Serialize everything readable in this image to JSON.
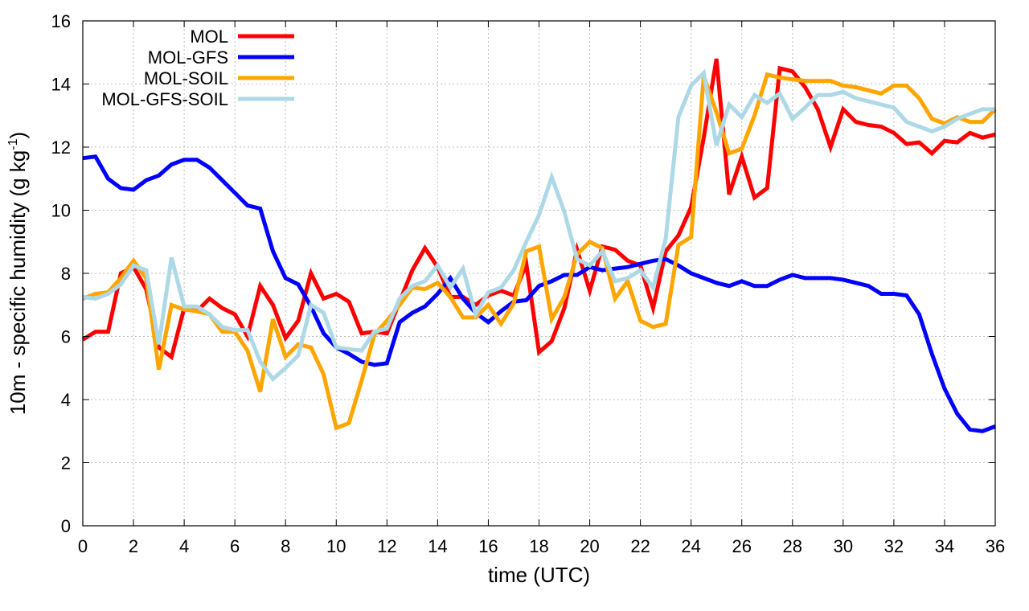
{
  "chart_data": {
    "type": "line",
    "title": "",
    "xlabel": "time (UTC)",
    "ylabel": {
      "main": "10m - specific humidity (g kg",
      "superscript": "-1",
      "suffix": ")"
    },
    "xlim": [
      0,
      36
    ],
    "ylim": [
      0,
      16
    ],
    "xticks": [
      0,
      2,
      4,
      6,
      8,
      10,
      12,
      14,
      16,
      18,
      20,
      22,
      24,
      26,
      28,
      30,
      32,
      34,
      36
    ],
    "yticks": [
      0,
      2,
      4,
      6,
      8,
      10,
      12,
      14,
      16
    ],
    "grid": true,
    "legend_position": "top-left",
    "series": [
      {
        "name": "MOL",
        "color": "#ff0000",
        "points": [
          [
            0,
            5.9
          ],
          [
            0.5,
            6.15
          ],
          [
            1,
            6.15
          ],
          [
            1.5,
            8.0
          ],
          [
            2,
            8.2
          ],
          [
            2.5,
            7.5
          ],
          [
            3,
            5.65
          ],
          [
            3.5,
            5.35
          ],
          [
            4,
            6.9
          ],
          [
            4.5,
            6.8
          ],
          [
            5,
            7.2
          ],
          [
            5.5,
            6.9
          ],
          [
            6,
            6.7
          ],
          [
            6.5,
            6.0
          ],
          [
            7,
            7.6
          ],
          [
            7.5,
            7.0
          ],
          [
            8,
            5.95
          ],
          [
            8.5,
            6.5
          ],
          [
            9,
            8.0
          ],
          [
            9.5,
            7.2
          ],
          [
            10,
            7.35
          ],
          [
            10.5,
            7.1
          ],
          [
            11,
            6.1
          ],
          [
            11.5,
            6.15
          ],
          [
            12,
            6.1
          ],
          [
            12.5,
            7.1
          ],
          [
            13,
            8.1
          ],
          [
            13.5,
            8.8
          ],
          [
            14,
            8.2
          ],
          [
            14.5,
            7.25
          ],
          [
            15,
            7.25
          ],
          [
            15.5,
            7.0
          ],
          [
            16,
            7.3
          ],
          [
            16.5,
            7.45
          ],
          [
            17,
            7.3
          ],
          [
            17.5,
            8.3
          ],
          [
            18,
            5.5
          ],
          [
            18.5,
            5.85
          ],
          [
            19,
            6.9
          ],
          [
            19.5,
            8.75
          ],
          [
            20,
            7.45
          ],
          [
            20.5,
            8.85
          ],
          [
            21,
            8.75
          ],
          [
            21.5,
            8.4
          ],
          [
            22,
            8.25
          ],
          [
            22.5,
            6.9
          ],
          [
            23,
            8.7
          ],
          [
            23.5,
            9.2
          ],
          [
            24,
            10.1
          ],
          [
            24.5,
            12.3
          ],
          [
            25,
            14.8
          ],
          [
            25.5,
            10.5
          ],
          [
            26,
            11.7
          ],
          [
            26.5,
            10.4
          ],
          [
            27,
            10.7
          ],
          [
            27.5,
            14.5
          ],
          [
            28,
            14.4
          ],
          [
            28.5,
            13.9
          ],
          [
            29,
            13.2
          ],
          [
            29.5,
            12.0
          ],
          [
            30,
            13.2
          ],
          [
            30.5,
            12.8
          ],
          [
            31,
            12.7
          ],
          [
            31.5,
            12.65
          ],
          [
            32,
            12.45
          ],
          [
            32.5,
            12.1
          ],
          [
            33,
            12.15
          ],
          [
            33.5,
            11.8
          ],
          [
            34,
            12.2
          ],
          [
            34.5,
            12.15
          ],
          [
            35,
            12.45
          ],
          [
            35.5,
            12.3
          ],
          [
            36,
            12.4
          ]
        ]
      },
      {
        "name": "MOL-GFS",
        "color": "#0000ff",
        "points": [
          [
            0,
            11.65
          ],
          [
            0.5,
            11.7
          ],
          [
            1,
            11.0
          ],
          [
            1.5,
            10.7
          ],
          [
            2,
            10.65
          ],
          [
            2.5,
            10.95
          ],
          [
            3,
            11.1
          ],
          [
            3.5,
            11.45
          ],
          [
            4,
            11.6
          ],
          [
            4.5,
            11.6
          ],
          [
            5,
            11.35
          ],
          [
            5.5,
            10.95
          ],
          [
            6,
            10.55
          ],
          [
            6.5,
            10.15
          ],
          [
            7,
            10.05
          ],
          [
            7.5,
            8.7
          ],
          [
            8,
            7.85
          ],
          [
            8.5,
            7.65
          ],
          [
            9,
            6.95
          ],
          [
            9.5,
            6.1
          ],
          [
            10,
            5.65
          ],
          [
            10.5,
            5.45
          ],
          [
            11,
            5.2
          ],
          [
            11.5,
            5.1
          ],
          [
            12,
            5.15
          ],
          [
            12.5,
            6.45
          ],
          [
            13,
            6.75
          ],
          [
            13.5,
            6.95
          ],
          [
            14,
            7.35
          ],
          [
            14.5,
            7.85
          ],
          [
            15,
            7.2
          ],
          [
            15.5,
            6.75
          ],
          [
            16,
            6.45
          ],
          [
            16.5,
            6.8
          ],
          [
            17,
            7.1
          ],
          [
            17.5,
            7.15
          ],
          [
            18,
            7.6
          ],
          [
            18.5,
            7.75
          ],
          [
            19,
            7.95
          ],
          [
            19.5,
            7.95
          ],
          [
            20,
            8.2
          ],
          [
            20.5,
            8.1
          ],
          [
            21,
            8.15
          ],
          [
            21.5,
            8.2
          ],
          [
            22,
            8.3
          ],
          [
            22.5,
            8.4
          ],
          [
            23,
            8.45
          ],
          [
            23.5,
            8.25
          ],
          [
            24,
            8.0
          ],
          [
            24.5,
            7.85
          ],
          [
            25,
            7.7
          ],
          [
            25.5,
            7.6
          ],
          [
            26,
            7.75
          ],
          [
            26.5,
            7.6
          ],
          [
            27,
            7.6
          ],
          [
            27.5,
            7.8
          ],
          [
            28,
            7.95
          ],
          [
            28.5,
            7.85
          ],
          [
            29,
            7.85
          ],
          [
            29.5,
            7.85
          ],
          [
            30,
            7.8
          ],
          [
            30.5,
            7.7
          ],
          [
            31,
            7.6
          ],
          [
            31.5,
            7.35
          ],
          [
            32,
            7.35
          ],
          [
            32.5,
            7.3
          ],
          [
            33,
            6.7
          ],
          [
            33.5,
            5.45
          ],
          [
            34,
            4.35
          ],
          [
            34.5,
            3.55
          ],
          [
            35,
            3.05
          ],
          [
            35.5,
            3.0
          ],
          [
            36,
            3.15
          ]
        ]
      },
      {
        "name": "MOL-SOIL",
        "color": "#ffa500",
        "points": [
          [
            0,
            7.2
          ],
          [
            0.5,
            7.35
          ],
          [
            1,
            7.4
          ],
          [
            1.5,
            7.85
          ],
          [
            2,
            8.4
          ],
          [
            2.5,
            7.85
          ],
          [
            3,
            4.95
          ],
          [
            3.5,
            7.0
          ],
          [
            4,
            6.85
          ],
          [
            4.5,
            6.8
          ],
          [
            5,
            6.7
          ],
          [
            5.5,
            6.15
          ],
          [
            6,
            6.15
          ],
          [
            6.5,
            5.55
          ],
          [
            7,
            4.25
          ],
          [
            7.5,
            6.55
          ],
          [
            8,
            5.35
          ],
          [
            8.5,
            5.75
          ],
          [
            9,
            5.65
          ],
          [
            9.5,
            4.8
          ],
          [
            10,
            3.1
          ],
          [
            10.5,
            3.25
          ],
          [
            11,
            4.6
          ],
          [
            11.5,
            6.05
          ],
          [
            12,
            6.5
          ],
          [
            12.5,
            7.0
          ],
          [
            13,
            7.55
          ],
          [
            13.5,
            7.5
          ],
          [
            14,
            7.7
          ],
          [
            14.5,
            7.25
          ],
          [
            15,
            6.6
          ],
          [
            15.5,
            6.6
          ],
          [
            16,
            7.0
          ],
          [
            16.5,
            6.4
          ],
          [
            17,
            7.05
          ],
          [
            17.5,
            8.7
          ],
          [
            18,
            8.85
          ],
          [
            18.5,
            6.55
          ],
          [
            19,
            7.25
          ],
          [
            19.5,
            8.6
          ],
          [
            20,
            9.0
          ],
          [
            20.5,
            8.8
          ],
          [
            21,
            7.2
          ],
          [
            21.5,
            7.75
          ],
          [
            22,
            6.5
          ],
          [
            22.5,
            6.3
          ],
          [
            23,
            6.4
          ],
          [
            23.5,
            8.9
          ],
          [
            24,
            9.15
          ],
          [
            24.5,
            14.25
          ],
          [
            25,
            13.1
          ],
          [
            25.5,
            11.8
          ],
          [
            26,
            11.95
          ],
          [
            26.5,
            13.0
          ],
          [
            27,
            14.3
          ],
          [
            27.5,
            14.2
          ],
          [
            28,
            14.15
          ],
          [
            28.5,
            14.1
          ],
          [
            29,
            14.1
          ],
          [
            29.5,
            14.1
          ],
          [
            30,
            13.95
          ],
          [
            30.5,
            13.9
          ],
          [
            31,
            13.8
          ],
          [
            31.5,
            13.7
          ],
          [
            32,
            13.95
          ],
          [
            32.5,
            13.95
          ],
          [
            33,
            13.55
          ],
          [
            33.5,
            12.9
          ],
          [
            34,
            12.75
          ],
          [
            34.5,
            12.95
          ],
          [
            35,
            12.8
          ],
          [
            35.5,
            12.8
          ],
          [
            36,
            13.2
          ]
        ]
      },
      {
        "name": "MOL-GFS-SOIL",
        "color": "#add8e6",
        "points": [
          [
            0,
            7.25
          ],
          [
            0.5,
            7.2
          ],
          [
            1,
            7.35
          ],
          [
            1.5,
            7.65
          ],
          [
            2,
            8.25
          ],
          [
            2.5,
            8.1
          ],
          [
            3,
            5.75
          ],
          [
            3.5,
            8.5
          ],
          [
            4,
            6.95
          ],
          [
            4.5,
            6.95
          ],
          [
            5,
            6.7
          ],
          [
            5.5,
            6.3
          ],
          [
            6,
            6.2
          ],
          [
            6.5,
            6.2
          ],
          [
            7,
            5.2
          ],
          [
            7.5,
            4.65
          ],
          [
            8,
            5.0
          ],
          [
            8.5,
            5.4
          ],
          [
            9,
            7.0
          ],
          [
            9.5,
            6.75
          ],
          [
            10,
            5.65
          ],
          [
            10.5,
            5.6
          ],
          [
            11,
            5.55
          ],
          [
            11.5,
            6.15
          ],
          [
            12,
            6.25
          ],
          [
            12.5,
            7.2
          ],
          [
            13,
            7.6
          ],
          [
            13.5,
            7.75
          ],
          [
            14,
            8.25
          ],
          [
            14.5,
            7.55
          ],
          [
            15,
            8.15
          ],
          [
            15.5,
            6.7
          ],
          [
            16,
            7.4
          ],
          [
            16.5,
            7.55
          ],
          [
            17,
            8.1
          ],
          [
            17.5,
            9.0
          ],
          [
            18,
            9.85
          ],
          [
            18.5,
            11.05
          ],
          [
            19,
            9.95
          ],
          [
            19.5,
            8.45
          ],
          [
            20,
            8.25
          ],
          [
            20.5,
            8.7
          ],
          [
            21,
            7.75
          ],
          [
            21.5,
            7.85
          ],
          [
            22,
            8.1
          ],
          [
            22.5,
            7.55
          ],
          [
            23,
            9.1
          ],
          [
            23.5,
            12.95
          ],
          [
            24,
            13.95
          ],
          [
            24.5,
            14.35
          ],
          [
            25,
            12.05
          ],
          [
            25.5,
            13.35
          ],
          [
            26,
            12.95
          ],
          [
            26.5,
            13.65
          ],
          [
            27,
            13.4
          ],
          [
            27.5,
            13.7
          ],
          [
            28,
            12.9
          ],
          [
            28.5,
            13.25
          ],
          [
            29,
            13.65
          ],
          [
            29.5,
            13.65
          ],
          [
            30,
            13.75
          ],
          [
            30.5,
            13.55
          ],
          [
            31,
            13.45
          ],
          [
            31.5,
            13.35
          ],
          [
            32,
            13.25
          ],
          [
            32.5,
            12.8
          ],
          [
            33,
            12.65
          ],
          [
            33.5,
            12.5
          ],
          [
            34,
            12.65
          ],
          [
            34.5,
            12.9
          ],
          [
            35,
            13.05
          ],
          [
            35.5,
            13.2
          ],
          [
            36,
            13.2
          ]
        ]
      }
    ]
  }
}
